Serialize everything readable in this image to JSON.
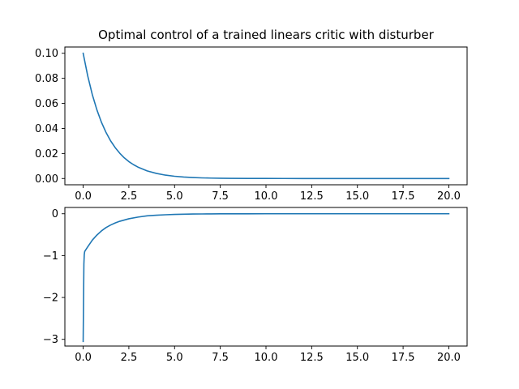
{
  "chart_data": [
    {
      "type": "line",
      "title": "Optimal control of a trained linears critic with disturber",
      "xlabel": "",
      "ylabel": "",
      "xlim": [
        -1.0,
        21.0
      ],
      "ylim": [
        -0.005,
        0.105
      ],
      "xticks": [
        0.0,
        2.5,
        5.0,
        7.5,
        10.0,
        12.5,
        15.0,
        17.5,
        20.0
      ],
      "xtick_labels": [
        "0.0",
        "2.5",
        "5.0",
        "7.5",
        "10.0",
        "12.5",
        "15.0",
        "17.5",
        "20.0"
      ],
      "yticks": [
        0.0,
        0.02,
        0.04,
        0.06,
        0.08,
        0.1
      ],
      "ytick_labels": [
        "0.00",
        "0.02",
        "0.04",
        "0.06",
        "0.08",
        "0.10"
      ],
      "grid": false,
      "series": [
        {
          "color": "#1f77b4",
          "x": [
            0,
            0.25,
            0.5,
            0.75,
            1.0,
            1.25,
            1.5,
            1.75,
            2.0,
            2.25,
            2.5,
            2.75,
            3.0,
            3.5,
            4.0,
            4.5,
            5.0,
            5.5,
            6.0,
            6.5,
            7.0,
            7.5,
            8.0,
            9.0,
            10.0,
            11.0,
            12.0,
            14.0,
            16.0,
            18.0,
            20.0
          ],
          "y": [
            0.1,
            0.0819,
            0.067,
            0.0549,
            0.0449,
            0.0368,
            0.0301,
            0.0247,
            0.0202,
            0.0165,
            0.0135,
            0.0111,
            0.0091,
            0.0061,
            0.0041,
            0.0027,
            0.0018,
            0.0012,
            0.0008,
            0.0005,
            0.00034,
            0.00022,
            0.00015,
            7e-05,
            3e-05,
            1e-05,
            0.0,
            0.0,
            0.0,
            0.0,
            0.0
          ]
        }
      ]
    },
    {
      "type": "line",
      "title": "",
      "xlabel": "",
      "ylabel": "",
      "xlim": [
        -1.0,
        21.0
      ],
      "ylim": [
        -3.16,
        0.15
      ],
      "xticks": [
        0.0,
        2.5,
        5.0,
        7.5,
        10.0,
        12.5,
        15.0,
        17.5,
        20.0
      ],
      "xtick_labels": [
        "0.0",
        "2.5",
        "5.0",
        "7.5",
        "10.0",
        "12.5",
        "15.0",
        "17.5",
        "20.0"
      ],
      "yticks": [
        0,
        -1,
        -2,
        -3
      ],
      "ytick_labels": [
        "0",
        "−1",
        "−2",
        "−3"
      ],
      "grid": false,
      "series": [
        {
          "color": "#1f77b4",
          "x": [
            0,
            0.02,
            0.04,
            0.06,
            0.08,
            0.1,
            0.25,
            0.5,
            0.75,
            1.0,
            1.25,
            1.5,
            1.75,
            2.0,
            2.5,
            3.0,
            3.5,
            4.0,
            4.5,
            5.0,
            5.5,
            6.0,
            6.5,
            7.0,
            7.5,
            8.0,
            9.0,
            10.0,
            12.0,
            14.0,
            16.0,
            18.0,
            20.0
          ],
          "y": [
            -3.05,
            -2.1,
            -1.2,
            -0.98,
            -0.91,
            -0.89,
            -0.79,
            -0.63,
            -0.51,
            -0.41,
            -0.33,
            -0.27,
            -0.22,
            -0.18,
            -0.12,
            -0.08,
            -0.05,
            -0.036,
            -0.024,
            -0.016,
            -0.011,
            -0.007,
            -0.005,
            -0.003,
            -0.002,
            -0.0014,
            -0.0006,
            -0.0003,
            0.0,
            0.0,
            0.0,
            0.0,
            0.0
          ]
        }
      ]
    }
  ]
}
